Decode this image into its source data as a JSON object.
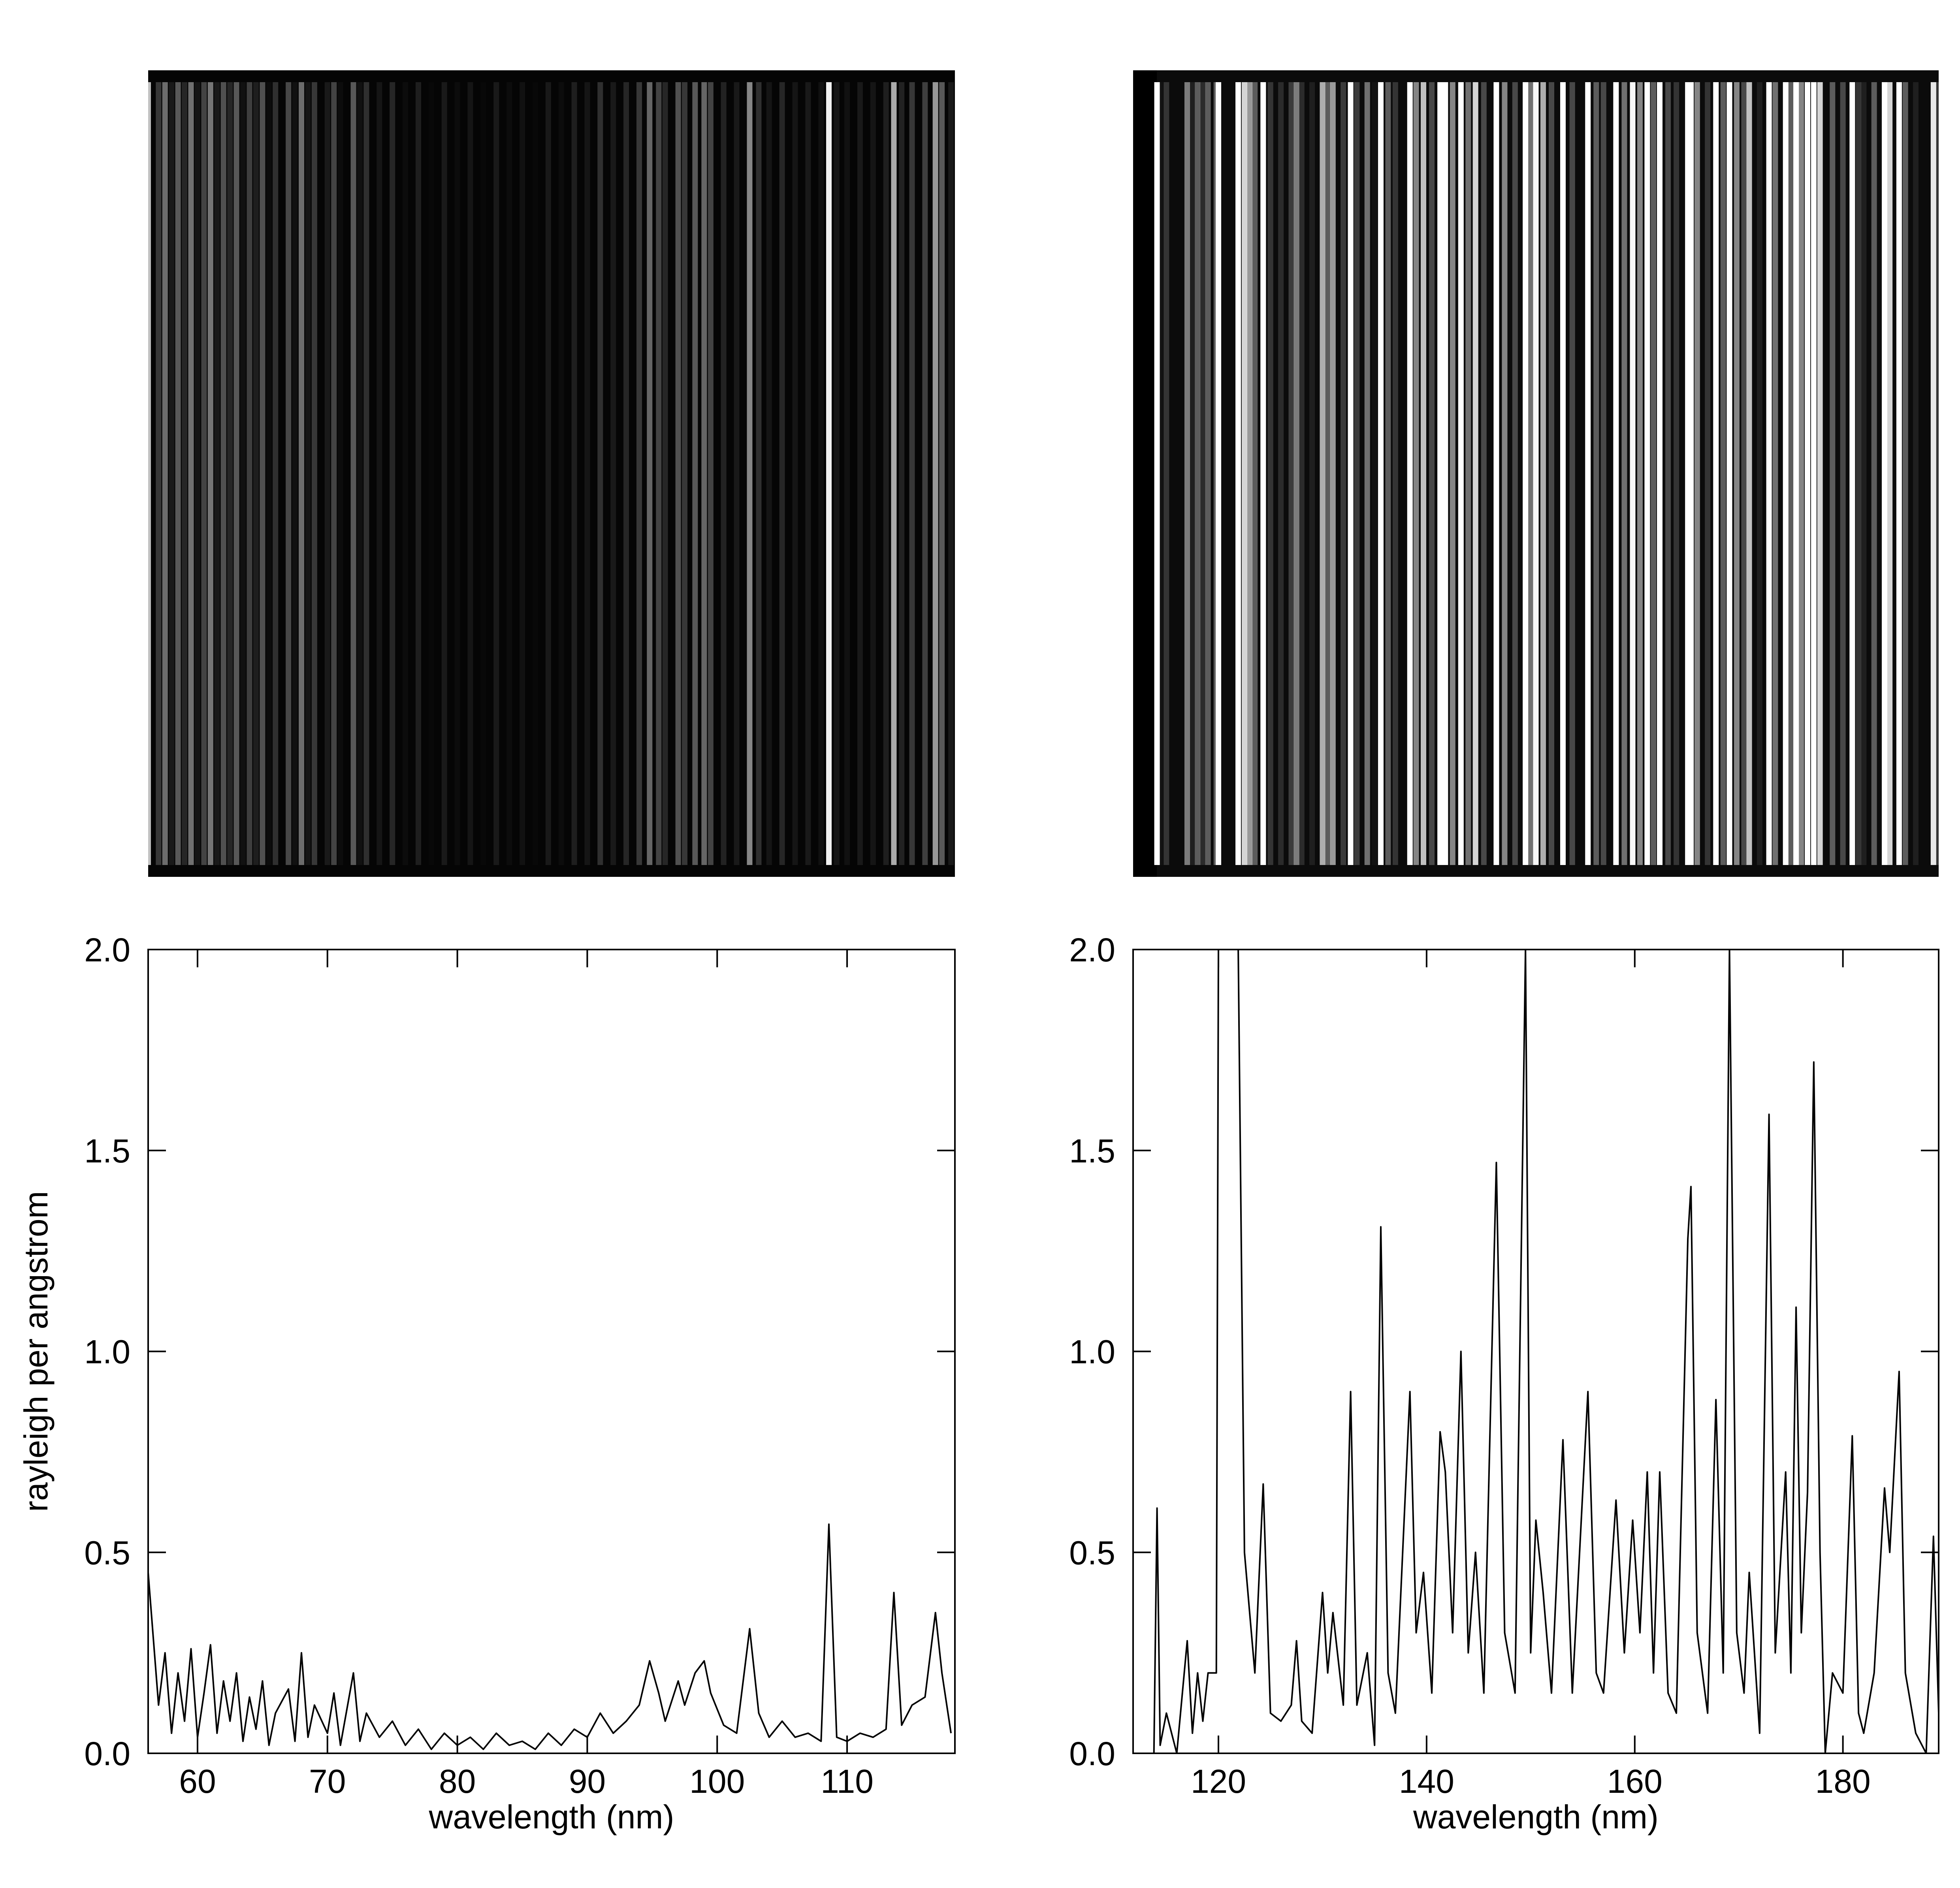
{
  "chart_data": [
    {
      "type": "line",
      "xlabel": "wavelength (nm)",
      "ylabel": "rayleigh per angstrom",
      "color": "#000000",
      "xlim": [
        56.2,
        118.3
      ],
      "ylim": [
        0,
        2
      ],
      "xticks": [
        60,
        70,
        80,
        90,
        100,
        110
      ],
      "yticks": [
        {
          "value": 0,
          "label": "0.0"
        },
        {
          "value": 0.5,
          "label": "0.5"
        },
        {
          "value": 1,
          "label": "1.0"
        },
        {
          "value": 1.5,
          "label": "1.5"
        },
        {
          "value": 2,
          "label": "2.0"
        }
      ],
      "x": [
        56.2,
        57,
        57.5,
        58,
        58.5,
        59,
        59.5,
        60,
        60.5,
        61,
        61.5,
        62,
        62.5,
        63,
        63.5,
        64,
        64.5,
        65,
        65.5,
        66,
        67,
        67.5,
        68,
        68.5,
        69,
        70,
        70.5,
        71,
        72,
        72.5,
        73,
        74,
        75,
        76,
        77,
        78,
        79,
        80,
        81,
        82,
        83,
        84,
        85,
        86,
        87,
        88,
        89,
        90,
        91,
        92,
        93,
        94,
        94.8,
        95.5,
        96,
        97,
        97.5,
        98.3,
        99,
        99.5,
        100.5,
        101.5,
        102.5,
        103.2,
        104,
        105,
        106,
        107,
        108,
        108.6,
        109.2,
        110,
        111,
        112,
        113,
        113.6,
        114.2,
        115,
        116,
        116.8,
        117.3,
        118
      ],
      "values": [
        0.45,
        0.12,
        0.25,
        0.05,
        0.2,
        0.08,
        0.26,
        0.04,
        0.15,
        0.27,
        0.05,
        0.18,
        0.08,
        0.2,
        0.03,
        0.14,
        0.06,
        0.18,
        0.02,
        0.1,
        0.16,
        0.03,
        0.25,
        0.04,
        0.12,
        0.05,
        0.15,
        0.02,
        0.2,
        0.03,
        0.1,
        0.04,
        0.08,
        0.02,
        0.06,
        0.01,
        0.05,
        0.02,
        0.04,
        0.01,
        0.05,
        0.02,
        0.03,
        0.01,
        0.05,
        0.02,
        0.06,
        0.04,
        0.1,
        0.05,
        0.08,
        0.12,
        0.23,
        0.15,
        0.08,
        0.18,
        0.12,
        0.2,
        0.23,
        0.15,
        0.07,
        0.05,
        0.31,
        0.1,
        0.04,
        0.08,
        0.04,
        0.05,
        0.03,
        0.57,
        0.04,
        0.03,
        0.05,
        0.04,
        0.06,
        0.4,
        0.07,
        0.12,
        0.14,
        0.35,
        0.2,
        0.05
      ]
    },
    {
      "type": "line",
      "xlabel": "wavelength (nm)",
      "color": "#000000",
      "xlim": [
        111.8,
        189.2
      ],
      "ylim": [
        0,
        2
      ],
      "xticks": [
        120,
        140,
        160,
        180
      ],
      "yticks": [
        {
          "value": 0,
          "label": "0.0"
        },
        {
          "value": 0.5,
          "label": "0.5"
        },
        {
          "value": 1,
          "label": "1.0"
        },
        {
          "value": 1.5,
          "label": "1.5"
        },
        {
          "value": 2,
          "label": "2.0"
        }
      ],
      "x": [
        113.8,
        114.1,
        114.4,
        115,
        116,
        117,
        117.5,
        118,
        118.5,
        119,
        119.8,
        120,
        121.9,
        122.5,
        123,
        123.5,
        124.3,
        125,
        126,
        127,
        127.5,
        128,
        129,
        130,
        130.5,
        131,
        132,
        132.7,
        133.3,
        134.3,
        135,
        135.6,
        136.3,
        137,
        138.4,
        139,
        139.7,
        140.5,
        141.3,
        141.8,
        142.5,
        143.3,
        144,
        144.7,
        145.5,
        146.7,
        147.5,
        148.5,
        149.5,
        150,
        150.5,
        151.2,
        152,
        153.1,
        154,
        155.5,
        156.3,
        157,
        158.2,
        159,
        159.8,
        160.5,
        161.2,
        161.8,
        162.4,
        163.2,
        164,
        165.1,
        165.4,
        166,
        167,
        167.8,
        168.5,
        169.1,
        169.8,
        170.5,
        171,
        172,
        172.9,
        173.5,
        174.5,
        175,
        175.5,
        176,
        176.6,
        177.2,
        177.8,
        178.3,
        179,
        180,
        180.9,
        181.5,
        182,
        183,
        184,
        184.5,
        185.4,
        186,
        187,
        188,
        188.7,
        189.2
      ],
      "values": [
        0.0,
        0.61,
        0.02,
        0.1,
        0.0,
        0.28,
        0.05,
        0.2,
        0.08,
        0.2,
        0.2,
        2.0,
        2.0,
        0.5,
        0.35,
        0.2,
        0.67,
        0.1,
        0.08,
        0.12,
        0.28,
        0.08,
        0.05,
        0.4,
        0.2,
        0.35,
        0.12,
        0.9,
        0.12,
        0.25,
        0.02,
        1.31,
        0.2,
        0.1,
        0.9,
        0.3,
        0.45,
        0.15,
        0.8,
        0.7,
        0.3,
        1.0,
        0.25,
        0.5,
        0.15,
        1.47,
        0.3,
        0.15,
        2.0,
        0.25,
        0.58,
        0.4,
        0.15,
        0.78,
        0.15,
        0.9,
        0.2,
        0.15,
        0.63,
        0.25,
        0.58,
        0.3,
        0.7,
        0.2,
        0.7,
        0.15,
        0.1,
        1.28,
        1.41,
        0.3,
        0.1,
        0.88,
        0.2,
        2.0,
        0.3,
        0.15,
        0.45,
        0.05,
        1.59,
        0.25,
        0.7,
        0.2,
        1.11,
        0.3,
        0.65,
        1.72,
        0.5,
        0.0,
        0.2,
        0.15,
        0.79,
        0.1,
        0.05,
        0.2,
        0.66,
        0.5,
        0.95,
        0.2,
        0.05,
        0.0,
        0.54,
        0.1
      ]
    }
  ]
}
